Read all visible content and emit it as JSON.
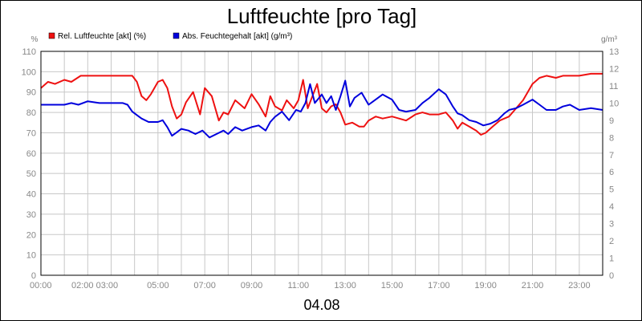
{
  "chart_data": {
    "type": "line",
    "title": "Luftfeuchte [pro Tag]",
    "date_label": "04.08",
    "y_left_unit": "%",
    "y_right_unit": "g/m³",
    "y_left_lim": [
      0,
      110
    ],
    "y_right_lim": [
      0,
      13
    ],
    "y_left_ticks": [
      0,
      10,
      20,
      30,
      40,
      50,
      60,
      70,
      80,
      90,
      100,
      110
    ],
    "y_right_ticks": [
      0,
      1,
      2,
      3,
      4,
      5,
      6,
      7,
      8,
      9,
      10,
      11,
      12,
      13
    ],
    "x_lim": [
      0,
      24
    ],
    "x_ticks": [
      {
        "t": 0,
        "label": "00:00"
      },
      {
        "t": 2.3,
        "label": "02:00 03:00"
      },
      {
        "t": 5,
        "label": "05:00"
      },
      {
        "t": 7,
        "label": "07:00"
      },
      {
        "t": 9,
        "label": "09:00"
      },
      {
        "t": 11,
        "label": "11:00"
      },
      {
        "t": 13,
        "label": "13:00"
      },
      {
        "t": 15,
        "label": "15:00"
      },
      {
        "t": 17,
        "label": "17:00"
      },
      {
        "t": 19,
        "label": "19:00"
      },
      {
        "t": 21,
        "label": "21:00"
      },
      {
        "t": 23,
        "label": "23:00"
      }
    ],
    "grid": true,
    "legend_position": "top-left",
    "series": [
      {
        "name": "Rel. Luftfeuchte [akt] (%)",
        "color": "#ee1111",
        "axis": "left",
        "points": [
          [
            0,
            92
          ],
          [
            0.3,
            95
          ],
          [
            0.6,
            94
          ],
          [
            1,
            96
          ],
          [
            1.3,
            95
          ],
          [
            1.7,
            98
          ],
          [
            2,
            98
          ],
          [
            2.5,
            98
          ],
          [
            3,
            98
          ],
          [
            3.5,
            98
          ],
          [
            3.9,
            98
          ],
          [
            4.1,
            95
          ],
          [
            4.3,
            88
          ],
          [
            4.5,
            86
          ],
          [
            4.7,
            89
          ],
          [
            5,
            95
          ],
          [
            5.2,
            96
          ],
          [
            5.4,
            92
          ],
          [
            5.6,
            83
          ],
          [
            5.8,
            77
          ],
          [
            6,
            79
          ],
          [
            6.2,
            85
          ],
          [
            6.5,
            90
          ],
          [
            6.8,
            79
          ],
          [
            7,
            92
          ],
          [
            7.3,
            88
          ],
          [
            7.6,
            76
          ],
          [
            7.8,
            80
          ],
          [
            8,
            79
          ],
          [
            8.3,
            86
          ],
          [
            8.5,
            84
          ],
          [
            8.7,
            82
          ],
          [
            9,
            89
          ],
          [
            9.3,
            84
          ],
          [
            9.6,
            78
          ],
          [
            9.8,
            88
          ],
          [
            10,
            83
          ],
          [
            10.3,
            81
          ],
          [
            10.5,
            86
          ],
          [
            10.8,
            82
          ],
          [
            11,
            86
          ],
          [
            11.2,
            96
          ],
          [
            11.4,
            82
          ],
          [
            11.6,
            88
          ],
          [
            11.8,
            94
          ],
          [
            12,
            82
          ],
          [
            12.2,
            80
          ],
          [
            12.4,
            83
          ],
          [
            12.6,
            84
          ],
          [
            12.8,
            80
          ],
          [
            13,
            74
          ],
          [
            13.3,
            75
          ],
          [
            13.6,
            73
          ],
          [
            13.8,
            73
          ],
          [
            14,
            76
          ],
          [
            14.3,
            78
          ],
          [
            14.6,
            77
          ],
          [
            15,
            78
          ],
          [
            15.3,
            77
          ],
          [
            15.6,
            76
          ],
          [
            16,
            79
          ],
          [
            16.3,
            80
          ],
          [
            16.6,
            79
          ],
          [
            17,
            79
          ],
          [
            17.3,
            80
          ],
          [
            17.6,
            76
          ],
          [
            17.8,
            72
          ],
          [
            18,
            75
          ],
          [
            18.3,
            73
          ],
          [
            18.6,
            71
          ],
          [
            18.8,
            69
          ],
          [
            19,
            70
          ],
          [
            19.3,
            73
          ],
          [
            19.6,
            76
          ],
          [
            20,
            78
          ],
          [
            20.3,
            82
          ],
          [
            20.6,
            86
          ],
          [
            21,
            94
          ],
          [
            21.3,
            97
          ],
          [
            21.6,
            98
          ],
          [
            22,
            97
          ],
          [
            22.3,
            98
          ],
          [
            22.6,
            98
          ],
          [
            23,
            98
          ],
          [
            23.5,
            99
          ],
          [
            24,
            99
          ]
        ]
      },
      {
        "name": "Abs. Feuchtegehalt [akt] (g/m³)",
        "color": "#0000dd",
        "axis": "right",
        "points": [
          [
            0,
            9.9
          ],
          [
            0.5,
            9.9
          ],
          [
            1,
            9.9
          ],
          [
            1.3,
            10
          ],
          [
            1.6,
            9.9
          ],
          [
            2,
            10.1
          ],
          [
            2.5,
            10
          ],
          [
            3,
            10
          ],
          [
            3.5,
            10
          ],
          [
            3.7,
            9.9
          ],
          [
            3.9,
            9.5
          ],
          [
            4.1,
            9.3
          ],
          [
            4.3,
            9.1
          ],
          [
            4.6,
            8.9
          ],
          [
            5,
            8.9
          ],
          [
            5.2,
            9.0
          ],
          [
            5.4,
            8.6
          ],
          [
            5.6,
            8.1
          ],
          [
            5.8,
            8.3
          ],
          [
            6,
            8.5
          ],
          [
            6.3,
            8.4
          ],
          [
            6.6,
            8.2
          ],
          [
            6.9,
            8.4
          ],
          [
            7.2,
            8.0
          ],
          [
            7.5,
            8.2
          ],
          [
            7.8,
            8.4
          ],
          [
            8,
            8.2
          ],
          [
            8.3,
            8.6
          ],
          [
            8.6,
            8.4
          ],
          [
            9,
            8.6
          ],
          [
            9.3,
            8.7
          ],
          [
            9.6,
            8.4
          ],
          [
            9.8,
            8.9
          ],
          [
            10,
            9.2
          ],
          [
            10.3,
            9.5
          ],
          [
            10.6,
            9.0
          ],
          [
            10.9,
            9.6
          ],
          [
            11.1,
            9.5
          ],
          [
            11.3,
            10
          ],
          [
            11.5,
            11.1
          ],
          [
            11.7,
            10
          ],
          [
            12,
            10.5
          ],
          [
            12.2,
            10
          ],
          [
            12.4,
            10.4
          ],
          [
            12.6,
            9.6
          ],
          [
            12.8,
            10.4
          ],
          [
            13,
            11.3
          ],
          [
            13.2,
            9.8
          ],
          [
            13.4,
            10.3
          ],
          [
            13.7,
            10.6
          ],
          [
            14,
            9.9
          ],
          [
            14.3,
            10.2
          ],
          [
            14.6,
            10.5
          ],
          [
            15,
            10.2
          ],
          [
            15.3,
            9.6
          ],
          [
            15.6,
            9.5
          ],
          [
            16,
            9.6
          ],
          [
            16.3,
            10
          ],
          [
            16.6,
            10.3
          ],
          [
            17,
            10.8
          ],
          [
            17.3,
            10.5
          ],
          [
            17.6,
            9.8
          ],
          [
            17.8,
            9.4
          ],
          [
            18,
            9.3
          ],
          [
            18.3,
            9.0
          ],
          [
            18.6,
            8.9
          ],
          [
            18.9,
            8.7
          ],
          [
            19.2,
            8.8
          ],
          [
            19.5,
            9.0
          ],
          [
            19.8,
            9.4
          ],
          [
            20,
            9.6
          ],
          [
            20.3,
            9.7
          ],
          [
            20.6,
            9.9
          ],
          [
            21,
            10.2
          ],
          [
            21.3,
            9.9
          ],
          [
            21.6,
            9.6
          ],
          [
            22,
            9.6
          ],
          [
            22.3,
            9.8
          ],
          [
            22.6,
            9.9
          ],
          [
            23,
            9.6
          ],
          [
            23.5,
            9.7
          ],
          [
            24,
            9.6
          ]
        ]
      }
    ]
  }
}
